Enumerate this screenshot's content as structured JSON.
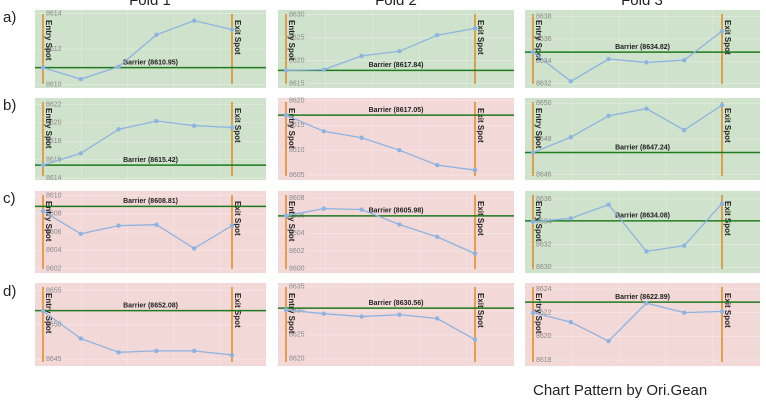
{
  "columns": [
    "Fold 1",
    "Fold 2",
    "Fold 3"
  ],
  "rows": [
    "a)",
    "b)",
    "c)",
    "d)"
  ],
  "credit": "Chart Pattern by Ori.Gean",
  "chart_data": [
    {
      "type": "line",
      "background": "#cfe2cb",
      "color": "#8db3e2",
      "grid": true,
      "categories": [
        null,
        null,
        null,
        null,
        null,
        null
      ],
      "values": [
        8610.95,
        8610.3,
        8611,
        8612.8,
        8613.6,
        8613.1
      ],
      "ylim": [
        8609.8,
        8614.2
      ],
      "yticks": [
        8610,
        8612,
        8614
      ],
      "barrier": {
        "value": 8610.95,
        "label": "Barrier (8610.95)"
      },
      "entry_label": "Entry Spot",
      "exit_label": "Exit Spot"
    },
    {
      "type": "line",
      "background": "#cfe2cb",
      "color": "#8db3e2",
      "grid": true,
      "categories": [
        null,
        null,
        null,
        null,
        null,
        null
      ],
      "values": [
        8617.84,
        8618,
        8621,
        8622,
        8625.5,
        8627
      ],
      "ylim": [
        8614,
        8631
      ],
      "yticks": [
        8615,
        8620,
        8625,
        8630
      ],
      "barrier": {
        "value": 8617.84,
        "label": "Barrier (8617.84)"
      },
      "entry_label": "Entry Spot",
      "exit_label": "Exit Spot"
    },
    {
      "type": "line",
      "background": "#cfe2cb",
      "color": "#8db3e2",
      "grid": true,
      "categories": [
        null,
        null,
        null,
        null,
        null,
        null
      ],
      "values": [
        8634.82,
        8632.2,
        8634.2,
        8633.9,
        8634.1,
        8636.7
      ],
      "ylim": [
        8631.6,
        8638.6
      ],
      "yticks": [
        8632,
        8634,
        8636,
        8638
      ],
      "barrier": {
        "value": 8634.82,
        "label": "Barrier (8634.82)"
      },
      "entry_label": "Entry Spot",
      "exit_label": "Exit Spot"
    },
    {
      "type": "line",
      "background": "#cfe2cb",
      "color": "#8db3e2",
      "grid": true,
      "categories": [
        null,
        null,
        null,
        null,
        null,
        null
      ],
      "values": [
        8615.42,
        8616.7,
        8619.3,
        8620.2,
        8619.7,
        8619.5
      ],
      "ylim": [
        8613.8,
        8622.7
      ],
      "yticks": [
        8614,
        8616,
        8618,
        8620,
        8622
      ],
      "barrier": {
        "value": 8615.42,
        "label": "Barrier (8615.42)"
      },
      "entry_label": "Entry Spot",
      "exit_label": "Exit Spot"
    },
    {
      "type": "line",
      "background": "#f3d8d8",
      "color": "#8db3e2",
      "grid": true,
      "categories": [
        null,
        null,
        null,
        null,
        null,
        null
      ],
      "values": [
        8617.05,
        8613.8,
        8612.5,
        8610,
        8607,
        8606
      ],
      "ylim": [
        8604,
        8620.5
      ],
      "yticks": [
        8605,
        8610,
        8615,
        8620
      ],
      "barrier": {
        "value": 8617.05,
        "label": "Barrier (8617.05)"
      },
      "entry_label": "Entry Spot",
      "exit_label": "Exit Spot"
    },
    {
      "type": "line",
      "background": "#cfe2cb",
      "color": "#8db3e2",
      "grid": true,
      "categories": [
        null,
        null,
        null,
        null,
        null,
        null
      ],
      "values": [
        8647.24,
        8648.1,
        8649.3,
        8649.7,
        8648.5,
        8649.9
      ],
      "ylim": [
        8645.7,
        8650.3
      ],
      "yticks": [
        8646,
        8648,
        8650
      ],
      "barrier": {
        "value": 8647.24,
        "label": "Barrier (8647.24)"
      },
      "entry_label": "Entry Spot",
      "exit_label": "Exit Spot"
    },
    {
      "type": "line",
      "background": "#f3d8d8",
      "color": "#8db3e2",
      "grid": true,
      "categories": [
        null,
        null,
        null,
        null,
        null,
        null
      ],
      "values": [
        8608.3,
        8605.8,
        8606.7,
        8606.8,
        8604.2,
        8606.7
      ],
      "ylim": [
        8601.5,
        8610.5
      ],
      "yticks": [
        8602,
        8604,
        8606,
        8608,
        8610
      ],
      "barrier": {
        "value": 8608.81,
        "label": "Barrier (8608.81)"
      },
      "entry_label": "Entry Spot",
      "exit_label": "Exit Spot"
    },
    {
      "type": "line",
      "background": "#f3d8d8",
      "color": "#8db3e2",
      "grid": true,
      "categories": [
        null,
        null,
        null,
        null,
        null,
        null
      ],
      "values": [
        8606,
        8606.8,
        8606.7,
        8605,
        8603.6,
        8601.7
      ],
      "ylim": [
        8599.5,
        8608.8
      ],
      "yticks": [
        8600,
        8602,
        8604,
        8606,
        8608
      ],
      "barrier": {
        "value": 8605.98,
        "label": "Barrier (8605.98)"
      },
      "entry_label": "Entry Spot",
      "exit_label": "Exit Spot"
    },
    {
      "type": "line",
      "background": "#cfe2cb",
      "color": "#8db3e2",
      "grid": true,
      "categories": [
        null,
        null,
        null,
        null,
        null,
        null
      ],
      "values": [
        8634,
        8634.3,
        8635.5,
        8631.4,
        8631.9,
        8635.6
      ],
      "ylim": [
        8629.5,
        8636.7
      ],
      "yticks": [
        8630,
        8632,
        8634,
        8636
      ],
      "barrier": {
        "value": 8634.08,
        "label": "Barrier (8634.08)"
      },
      "entry_label": "Entry Spot",
      "exit_label": "Exit Spot"
    },
    {
      "type": "line",
      "background": "#f3d8d8",
      "color": "#8db3e2",
      "grid": true,
      "categories": [
        null,
        null,
        null,
        null,
        null,
        null
      ],
      "values": [
        8652,
        8648,
        8646,
        8646.2,
        8646.2,
        8645.6
      ],
      "ylim": [
        8644,
        8656.1
      ],
      "yticks": [
        8645,
        8650,
        8655
      ],
      "barrier": {
        "value": 8652.08,
        "label": "Barrier (8652.08)"
      },
      "entry_label": "Entry Spot",
      "exit_label": "Exit Spot"
    },
    {
      "type": "line",
      "background": "#f3d8d8",
      "color": "#8db3e2",
      "grid": true,
      "categories": [
        null,
        null,
        null,
        null,
        null,
        null
      ],
      "values": [
        8630.2,
        8629.4,
        8628.8,
        8629.2,
        8628.4,
        8624
      ],
      "ylim": [
        8618.5,
        8635.8
      ],
      "yticks": [
        8620,
        8625,
        8630,
        8635
      ],
      "barrier": {
        "value": 8630.56,
        "label": "Barrier (8630.56)"
      },
      "entry_label": "Entry Spot",
      "exit_label": "Exit Spot"
    },
    {
      "type": "line",
      "background": "#f3d8d8",
      "color": "#8db3e2",
      "grid": true,
      "categories": [
        null,
        null,
        null,
        null,
        null,
        null
      ],
      "values": [
        8622,
        8621.2,
        8619.6,
        8622.8,
        8622,
        8622.1
      ],
      "ylim": [
        8617.5,
        8624.5
      ],
      "yticks": [
        8618,
        8620,
        8622,
        8624
      ],
      "barrier": {
        "value": 8622.89,
        "label": "Barrier (8622.89)"
      },
      "entry_label": "Entry Spot",
      "exit_label": "Exit Spot"
    }
  ]
}
